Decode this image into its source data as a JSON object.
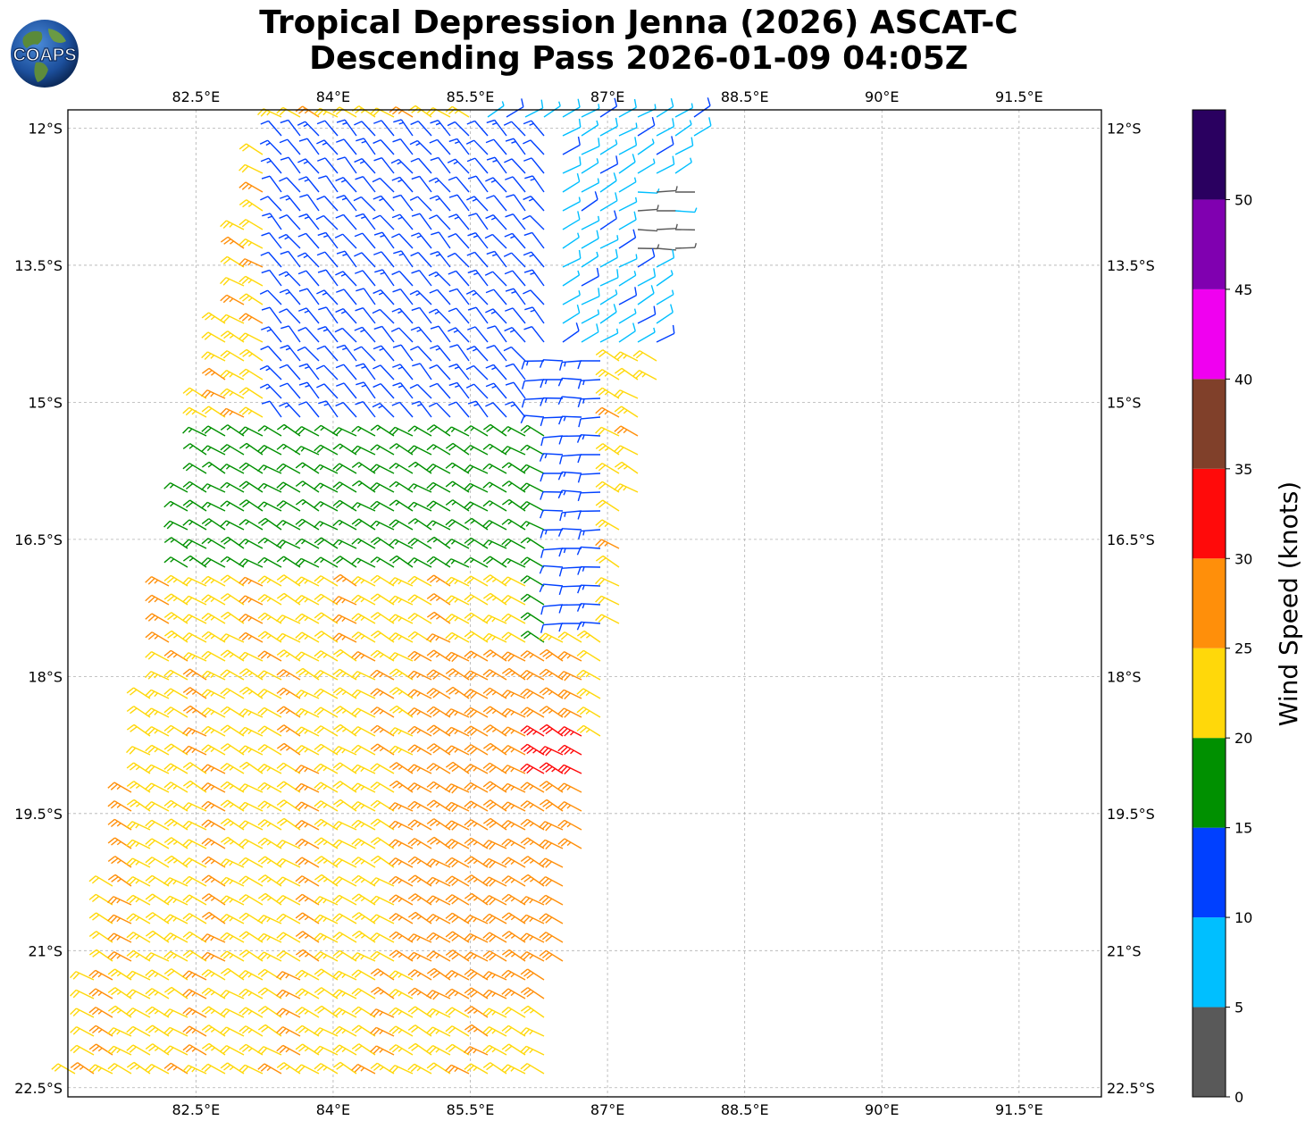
{
  "header": {
    "title_line1": "Tropical Depression Jenna (2026) ASCAT-C",
    "title_line2": "Descending Pass 2026-01-09 04:05Z",
    "logo_text": "COAPS"
  },
  "map": {
    "lon_range": [
      81.1,
      92.4
    ],
    "lat_range": [
      -22.6,
      -11.8
    ],
    "lon_ticks": [
      {
        "value": 82.5,
        "label": "82.5°E"
      },
      {
        "value": 84.0,
        "label": "84°E"
      },
      {
        "value": 85.5,
        "label": "85.5°E"
      },
      {
        "value": 87.0,
        "label": "87°E"
      },
      {
        "value": 88.5,
        "label": "88.5°E"
      },
      {
        "value": 90.0,
        "label": "90°E"
      },
      {
        "value": 91.5,
        "label": "91.5°E"
      }
    ],
    "lat_ticks": [
      {
        "value": -12.0,
        "label": "12°S"
      },
      {
        "value": -13.5,
        "label": "13.5°S"
      },
      {
        "value": -15.0,
        "label": "15°S"
      },
      {
        "value": -16.5,
        "label": "16.5°S"
      },
      {
        "value": -18.0,
        "label": "18°S"
      },
      {
        "value": -19.5,
        "label": "19.5°S"
      },
      {
        "value": -21.0,
        "label": "21°S"
      },
      {
        "value": -22.5,
        "label": "22.5°S"
      }
    ],
    "grid": true,
    "swath_corners": [
      {
        "lon": 83.3,
        "lat": -11.8
      },
      {
        "lon": 88.0,
        "lat": -11.8
      },
      {
        "lon": 87.1,
        "lat": -17.6
      },
      {
        "lon": 86.3,
        "lat": -22.6
      },
      {
        "lon": 81.1,
        "lat": -22.6
      },
      {
        "lon": 82.6,
        "lat": -15.0
      }
    ],
    "wind_regions": [
      {
        "name": "northeast calm",
        "lon_range": [
          85.5,
          88.0
        ],
        "lat_range": [
          -14.5,
          -11.8
        ],
        "speed_kt": 8,
        "direction_from_deg": 60
      },
      {
        "name": "light variable",
        "lon_range": [
          87.2,
          87.8
        ],
        "lat_range": [
          -13.5,
          -12.6
        ],
        "speed_kt": 3,
        "direction_from_deg": 90
      },
      {
        "name": "north band",
        "lon_range": [
          83.3,
          86.5
        ],
        "lat_range": [
          -15.2,
          -12.0
        ],
        "speed_kt": 12,
        "direction_from_deg": 320
      },
      {
        "name": "east flank",
        "lon_range": [
          86.3,
          87.1
        ],
        "lat_range": [
          -17.5,
          -14.5
        ],
        "speed_kt": 12,
        "direction_from_deg": 270
      },
      {
        "name": "central band",
        "lon_range": [
          82.2,
          86.5
        ],
        "lat_range": [
          -18.5,
          -15.2
        ],
        "speed_kt": 17,
        "direction_from_deg": 300
      },
      {
        "name": "south band",
        "lon_range": [
          81.1,
          86.3
        ],
        "lat_range": [
          -22.6,
          -17.0
        ],
        "speed_kt": 23,
        "direction_from_deg": 300
      },
      {
        "name": "southeast core",
        "lon_range": [
          85.0,
          86.9
        ],
        "lat_range": [
          -21.7,
          -17.8
        ],
        "speed_kt": 27,
        "direction_from_deg": 300
      },
      {
        "name": "max wind",
        "lon_range": [
          86.2,
          86.9
        ],
        "lat_range": [
          -19.2,
          -18.6
        ],
        "speed_kt": 32,
        "direction_from_deg": 300
      }
    ]
  },
  "colorbar": {
    "label": "Wind Speed (knots)",
    "ticks": [
      "0",
      "5",
      "10",
      "15",
      "20",
      "25",
      "30",
      "35",
      "40",
      "45",
      "50"
    ],
    "bins": [
      {
        "min": 0,
        "max": 5,
        "color": "#595959"
      },
      {
        "min": 5,
        "max": 10,
        "color": "#00bfff"
      },
      {
        "min": 10,
        "max": 15,
        "color": "#0040ff"
      },
      {
        "min": 15,
        "max": 20,
        "color": "#009000"
      },
      {
        "min": 20,
        "max": 25,
        "color": "#ffd80a"
      },
      {
        "min": 25,
        "max": 30,
        "color": "#ff8f0a"
      },
      {
        "min": 30,
        "max": 35,
        "color": "#ff0a0a"
      },
      {
        "min": 35,
        "max": 40,
        "color": "#80402a"
      },
      {
        "min": 40,
        "max": 45,
        "color": "#f000f0"
      },
      {
        "min": 45,
        "max": 50,
        "color": "#8000b0"
      },
      {
        "min": 50,
        "max": 55,
        "color": "#2a0060"
      }
    ]
  }
}
